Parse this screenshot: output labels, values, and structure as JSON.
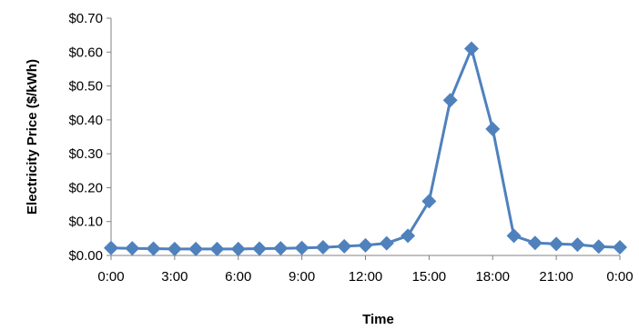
{
  "chart_data": {
    "type": "line",
    "title": "",
    "xlabel": "Time",
    "ylabel": "Electricity Price ($/kWh)",
    "x": [
      0,
      1,
      2,
      3,
      4,
      5,
      6,
      7,
      8,
      9,
      10,
      11,
      12,
      13,
      14,
      15,
      16,
      17,
      18,
      19,
      20,
      21,
      22,
      23,
      24
    ],
    "x_ticks": [
      {
        "at": 0,
        "label": "0:00"
      },
      {
        "at": 3,
        "label": "3:00"
      },
      {
        "at": 6,
        "label": "6:00"
      },
      {
        "at": 9,
        "label": "9:00"
      },
      {
        "at": 12,
        "label": "12:00"
      },
      {
        "at": 15,
        "label": "15:00"
      },
      {
        "at": 18,
        "label": "18:00"
      },
      {
        "at": 21,
        "label": "21:00"
      },
      {
        "at": 24,
        "label": "0:00"
      }
    ],
    "y_ticks": [
      {
        "at": 0.0,
        "label": "$0.00"
      },
      {
        "at": 0.1,
        "label": "$0.10"
      },
      {
        "at": 0.2,
        "label": "$0.20"
      },
      {
        "at": 0.3,
        "label": "$0.30"
      },
      {
        "at": 0.4,
        "label": "$0.40"
      },
      {
        "at": 0.5,
        "label": "$0.50"
      },
      {
        "at": 0.6,
        "label": "$0.60"
      },
      {
        "at": 0.7,
        "label": "$0.70"
      }
    ],
    "xlim": [
      0,
      24
    ],
    "ylim": [
      0,
      0.7
    ],
    "grid": false,
    "legend": "none",
    "series": [
      {
        "color": "#4f81bd",
        "marker": "diamond",
        "values": [
          0.022,
          0.021,
          0.02,
          0.019,
          0.019,
          0.019,
          0.019,
          0.02,
          0.021,
          0.022,
          0.024,
          0.027,
          0.03,
          0.036,
          0.058,
          0.16,
          0.458,
          0.61,
          0.373,
          0.058,
          0.037,
          0.034,
          0.032,
          0.026,
          0.024
        ]
      }
    ]
  }
}
